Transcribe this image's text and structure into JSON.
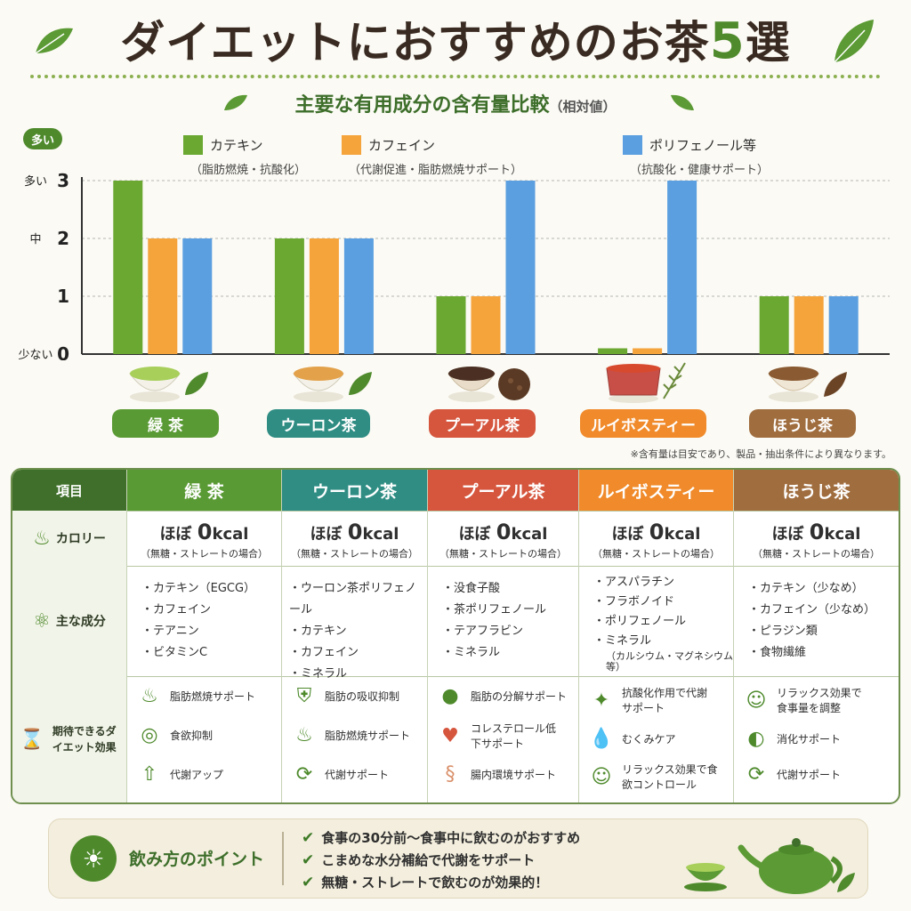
{
  "title": {
    "main": "ダイエットにおすすめのお茶",
    "number": "5",
    "suffix": "選"
  },
  "subtitle": {
    "main": "主要な有用成分の含有量比較",
    "note": "（相対値）"
  },
  "chart_data": {
    "type": "bar",
    "title": "主要な有用成分の含有量比較（相対値）",
    "categories": [
      "緑 茶",
      "ウーロン茶",
      "プーアル茶",
      "ルイボスティー",
      "ほうじ茶"
    ],
    "series": [
      {
        "name": "カテキン",
        "note": "（脂肪燃焼・抗酸化）",
        "color": "#6aa832",
        "values": [
          3,
          2,
          1,
          0.1,
          1
        ]
      },
      {
        "name": "カフェイン",
        "note": "（代謝促進・脂肪燃焼サポート）",
        "color": "#f5a33b",
        "values": [
          2,
          2,
          1,
          0.1,
          1
        ]
      },
      {
        "name": "ポリフェノール等",
        "note": "（抗酸化・健康サポート）",
        "color": "#5b9fe0",
        "values": [
          2,
          2,
          3,
          3,
          1
        ]
      }
    ],
    "ylim": [
      0,
      3
    ],
    "yticks": [
      0,
      1,
      2,
      3
    ],
    "ytick_words": {
      "top": "多い",
      "mid": "中",
      "bottom": "少ない"
    },
    "y_badge": "多い",
    "grid": true,
    "legend": "top"
  },
  "tea_colors": [
    "#5a9a34",
    "#2f8d84",
    "#d5553d",
    "#f08a2a",
    "#a06d3e"
  ],
  "note": "※含有量は目安であり、製品・抽出条件により異なります。",
  "table": {
    "header_first": "項目",
    "headers": [
      "緑 茶",
      "ウーロン茶",
      "プーアル茶",
      "ルイボスティー",
      "ほうじ茶"
    ],
    "row_labels": {
      "calorie": "カロリー",
      "ingredients": "主な成分",
      "effects": "期待できるダイエット効果"
    },
    "calorie": {
      "approx": "ほぼ",
      "value": "0",
      "unit": "kcal",
      "note": "（無糖・ストレートの場合）"
    },
    "ingredients": [
      [
        "・カテキン（EGCG）",
        "・カフェイン",
        "・テアニン",
        "・ビタミンC"
      ],
      [
        "・ウーロン茶ポリフェノール",
        "・カテキン",
        "・カフェイン",
        "・ミネラル"
      ],
      [
        "・没食子酸",
        "・茶ポリフェノール",
        "・テアフラビン",
        "・ミネラル"
      ],
      [
        "・アスパラチン",
        "・フラボノイド",
        "・ポリフェノール",
        "・ミネラル"
      ],
      [
        "・カテキン（少なめ）",
        "・カフェイン（少なめ）",
        "・ピラジン類",
        "・食物繊維"
      ]
    ],
    "ingredients_extra": "（カルシウム・マグネシウム等）",
    "effects": [
      [
        {
          "icon": "flame-icon",
          "text": "脂肪燃焼サポート"
        },
        {
          "icon": "plate-icon",
          "text": "食欲抑制"
        },
        {
          "icon": "arrow-up-icon",
          "text": "代謝アップ"
        }
      ],
      [
        {
          "icon": "shield-icon",
          "text": "脂肪の吸収抑制"
        },
        {
          "icon": "flame-icon",
          "text": "脂肪燃焼サポート"
        },
        {
          "icon": "cycle-icon",
          "text": "代謝サポート"
        }
      ],
      [
        {
          "icon": "drop-icon",
          "text": "脂肪の分解サポート"
        },
        {
          "icon": "heart-icon",
          "text": "コレステロール低下サポート"
        },
        {
          "icon": "intestine-icon",
          "text": "腸内環境サポート"
        }
      ],
      [
        {
          "icon": "sparkle-icon",
          "text": "抗酸化作用で代謝サポート"
        },
        {
          "icon": "water-drop-icon",
          "text": "むくみケア"
        },
        {
          "icon": "smile-icon",
          "text": "リラックス効果で食欲コントロール"
        }
      ],
      [
        {
          "icon": "smile-icon",
          "text": "リラックス効果で食事量を調整"
        },
        {
          "icon": "stomach-icon",
          "text": "消化サポート"
        },
        {
          "icon": "cycle-icon",
          "text": "代謝サポート"
        }
      ]
    ]
  },
  "tips": {
    "title": "飲み方のポイント",
    "items": [
      "食事の30分前〜食事中に飲むのがおすすめ",
      "こまめな水分補給で代謝をサポート",
      "無糖・ストレートで飲むのが効果的！"
    ]
  }
}
